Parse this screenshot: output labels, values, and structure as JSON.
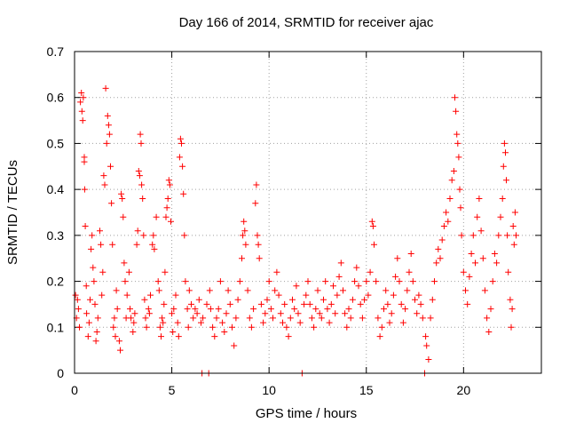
{
  "chart_data": {
    "type": "scatter",
    "title": "Day 166 of 2014, SRMTID for receiver ajac",
    "xlabel": "GPS time / hours",
    "ylabel": "SRMTID / TECUs",
    "xlim": [
      0,
      24
    ],
    "ylim": [
      0,
      0.7
    ],
    "xticks": [
      0,
      5,
      10,
      15,
      20
    ],
    "yticks": [
      0,
      0.1,
      0.2,
      0.3,
      0.4,
      0.5,
      0.6,
      0.7
    ],
    "xtick_labels": [
      "0",
      "5",
      "10",
      "15",
      "20"
    ],
    "ytick_labels": [
      "0",
      "0.1",
      "0.2",
      "0.3",
      "0.4",
      "0.5",
      "0.6",
      "0.7"
    ],
    "grid": true,
    "legend": "none",
    "marker": "+",
    "color": "#ff0000",
    "series": [
      {
        "name": "SRMTID",
        "points": [
          [
            0.05,
            0.17
          ],
          [
            0.1,
            0.12
          ],
          [
            0.15,
            0.16
          ],
          [
            0.2,
            0.14
          ],
          [
            0.25,
            0.1
          ],
          [
            0.3,
            0.59
          ],
          [
            0.35,
            0.61
          ],
          [
            0.38,
            0.57
          ],
          [
            0.42,
            0.55
          ],
          [
            0.45,
            0.6
          ],
          [
            0.5,
            0.47
          ],
          [
            0.5,
            0.46
          ],
          [
            0.52,
            0.4
          ],
          [
            0.55,
            0.32
          ],
          [
            0.6,
            0.19
          ],
          [
            0.62,
            0.13
          ],
          [
            0.7,
            0.08
          ],
          [
            0.75,
            0.11
          ],
          [
            0.8,
            0.16
          ],
          [
            0.85,
            0.27
          ],
          [
            0.9,
            0.3
          ],
          [
            0.95,
            0.23
          ],
          [
            1.0,
            0.2
          ],
          [
            1.05,
            0.15
          ],
          [
            1.1,
            0.07
          ],
          [
            1.15,
            0.09
          ],
          [
            1.2,
            0.12
          ],
          [
            1.3,
            0.31
          ],
          [
            1.35,
            0.28
          ],
          [
            1.4,
            0.17
          ],
          [
            1.45,
            0.22
          ],
          [
            1.5,
            0.43
          ],
          [
            1.55,
            0.41
          ],
          [
            1.6,
            0.62
          ],
          [
            1.65,
            0.5
          ],
          [
            1.7,
            0.56
          ],
          [
            1.75,
            0.54
          ],
          [
            1.8,
            0.52
          ],
          [
            1.85,
            0.45
          ],
          [
            1.9,
            0.37
          ],
          [
            1.95,
            0.28
          ],
          [
            2.0,
            0.1
          ],
          [
            2.05,
            0.12
          ],
          [
            2.1,
            0.08
          ],
          [
            2.15,
            0.18
          ],
          [
            2.2,
            0.14
          ],
          [
            2.3,
            0.07
          ],
          [
            2.35,
            0.05
          ],
          [
            2.4,
            0.39
          ],
          [
            2.45,
            0.38
          ],
          [
            2.5,
            0.34
          ],
          [
            2.55,
            0.24
          ],
          [
            2.6,
            0.2
          ],
          [
            2.65,
            0.12
          ],
          [
            2.7,
            0.17
          ],
          [
            2.8,
            0.22
          ],
          [
            2.85,
            0.14
          ],
          [
            2.9,
            0.12
          ],
          [
            3.0,
            0.09
          ],
          [
            3.05,
            0.11
          ],
          [
            3.1,
            0.13
          ],
          [
            3.2,
            0.28
          ],
          [
            3.25,
            0.31
          ],
          [
            3.3,
            0.44
          ],
          [
            3.35,
            0.43
          ],
          [
            3.38,
            0.52
          ],
          [
            3.42,
            0.5
          ],
          [
            3.45,
            0.41
          ],
          [
            3.5,
            0.38
          ],
          [
            3.55,
            0.3
          ],
          [
            3.6,
            0.16
          ],
          [
            3.65,
            0.12
          ],
          [
            3.7,
            0.1
          ],
          [
            3.8,
            0.14
          ],
          [
            3.85,
            0.13
          ],
          [
            3.9,
            0.17
          ],
          [
            4.0,
            0.28
          ],
          [
            4.05,
            0.3
          ],
          [
            4.1,
            0.27
          ],
          [
            4.2,
            0.34
          ],
          [
            4.3,
            0.2
          ],
          [
            4.35,
            0.18
          ],
          [
            4.4,
            0.1
          ],
          [
            4.45,
            0.08
          ],
          [
            4.5,
            0.12
          ],
          [
            4.55,
            0.11
          ],
          [
            4.6,
            0.15
          ],
          [
            4.65,
            0.22
          ],
          [
            4.7,
            0.34
          ],
          [
            4.75,
            0.36
          ],
          [
            4.8,
            0.38
          ],
          [
            4.85,
            0.42
          ],
          [
            4.9,
            0.41
          ],
          [
            4.95,
            0.33
          ],
          [
            5.0,
            0.13
          ],
          [
            5.05,
            0.09
          ],
          [
            5.1,
            0.14
          ],
          [
            5.2,
            0.17
          ],
          [
            5.3,
            0.11
          ],
          [
            5.35,
            0.08
          ],
          [
            5.4,
            0.47
          ],
          [
            5.45,
            0.51
          ],
          [
            5.5,
            0.5
          ],
          [
            5.55,
            0.45
          ],
          [
            5.6,
            0.39
          ],
          [
            5.65,
            0.3
          ],
          [
            5.7,
            0.2
          ],
          [
            5.8,
            0.14
          ],
          [
            5.85,
            0.1
          ],
          [
            5.9,
            0.18
          ],
          [
            6.0,
            0.15
          ],
          [
            6.1,
            0.12
          ],
          [
            6.2,
            0.14
          ],
          [
            6.3,
            0.13
          ],
          [
            6.4,
            0.16
          ],
          [
            6.5,
            0.11
          ],
          [
            6.55,
            0.0
          ],
          [
            6.6,
            0.12
          ],
          [
            6.8,
            0.15
          ],
          [
            6.9,
            0.0
          ],
          [
            6.95,
            0.18
          ],
          [
            7.0,
            0.14
          ],
          [
            7.1,
            0.1
          ],
          [
            7.2,
            0.08
          ],
          [
            7.3,
            0.12
          ],
          [
            7.4,
            0.14
          ],
          [
            7.5,
            0.2
          ],
          [
            7.6,
            0.11
          ],
          [
            7.7,
            0.09
          ],
          [
            7.8,
            0.13
          ],
          [
            7.9,
            0.18
          ],
          [
            8.0,
            0.15
          ],
          [
            8.1,
            0.1
          ],
          [
            8.2,
            0.06
          ],
          [
            8.3,
            0.12
          ],
          [
            8.4,
            0.16
          ],
          [
            8.5,
            0.2
          ],
          [
            8.6,
            0.25
          ],
          [
            8.65,
            0.3
          ],
          [
            8.7,
            0.33
          ],
          [
            8.75,
            0.31
          ],
          [
            8.8,
            0.28
          ],
          [
            8.9,
            0.18
          ],
          [
            9.0,
            0.12
          ],
          [
            9.1,
            0.1
          ],
          [
            9.2,
            0.14
          ],
          [
            9.3,
            0.37
          ],
          [
            9.35,
            0.41
          ],
          [
            9.4,
            0.3
          ],
          [
            9.45,
            0.28
          ],
          [
            9.5,
            0.25
          ],
          [
            9.6,
            0.15
          ],
          [
            9.7,
            0.11
          ],
          [
            9.8,
            0.13
          ],
          [
            9.9,
            0.16
          ],
          [
            10.0,
            0.2
          ],
          [
            10.1,
            0.14
          ],
          [
            10.2,
            0.12
          ],
          [
            10.3,
            0.18
          ],
          [
            10.4,
            0.22
          ],
          [
            10.5,
            0.17
          ],
          [
            10.6,
            0.13
          ],
          [
            10.7,
            0.11
          ],
          [
            10.8,
            0.15
          ],
          [
            10.9,
            0.1
          ],
          [
            11.0,
            0.08
          ],
          [
            11.1,
            0.12
          ],
          [
            11.2,
            0.16
          ],
          [
            11.3,
            0.14
          ],
          [
            11.4,
            0.19
          ],
          [
            11.5,
            0.13
          ],
          [
            11.6,
            0.11
          ],
          [
            11.7,
            0.0
          ],
          [
            11.8,
            0.15
          ],
          [
            11.9,
            0.17
          ],
          [
            12.0,
            0.2
          ],
          [
            12.1,
            0.15
          ],
          [
            12.2,
            0.12
          ],
          [
            12.3,
            0.1
          ],
          [
            12.4,
            0.14
          ],
          [
            12.5,
            0.18
          ],
          [
            12.6,
            0.13
          ],
          [
            12.7,
            0.12
          ],
          [
            12.8,
            0.16
          ],
          [
            12.9,
            0.2
          ],
          [
            13.0,
            0.14
          ],
          [
            13.1,
            0.11
          ],
          [
            13.2,
            0.15
          ],
          [
            13.3,
            0.19
          ],
          [
            13.4,
            0.13
          ],
          [
            13.5,
            0.17
          ],
          [
            13.6,
            0.21
          ],
          [
            13.7,
            0.24
          ],
          [
            13.8,
            0.18
          ],
          [
            13.9,
            0.13
          ],
          [
            14.0,
            0.1
          ],
          [
            14.1,
            0.14
          ],
          [
            14.2,
            0.12
          ],
          [
            14.3,
            0.16
          ],
          [
            14.4,
            0.2
          ],
          [
            14.5,
            0.23
          ],
          [
            14.6,
            0.19
          ],
          [
            14.7,
            0.15
          ],
          [
            14.8,
            0.12
          ],
          [
            14.9,
            0.16
          ],
          [
            15.0,
            0.2
          ],
          [
            15.1,
            0.17
          ],
          [
            15.2,
            0.22
          ],
          [
            15.3,
            0.33
          ],
          [
            15.35,
            0.32
          ],
          [
            15.4,
            0.28
          ],
          [
            15.5,
            0.2
          ],
          [
            15.6,
            0.12
          ],
          [
            15.7,
            0.08
          ],
          [
            15.8,
            0.1
          ],
          [
            15.9,
            0.14
          ],
          [
            16.0,
            0.18
          ],
          [
            16.1,
            0.15
          ],
          [
            16.2,
            0.11
          ],
          [
            16.3,
            0.13
          ],
          [
            16.4,
            0.17
          ],
          [
            16.5,
            0.21
          ],
          [
            16.6,
            0.25
          ],
          [
            16.7,
            0.2
          ],
          [
            16.8,
            0.15
          ],
          [
            16.9,
            0.11
          ],
          [
            17.0,
            0.14
          ],
          [
            17.1,
            0.18
          ],
          [
            17.2,
            0.22
          ],
          [
            17.3,
            0.26
          ],
          [
            17.4,
            0.2
          ],
          [
            17.5,
            0.16
          ],
          [
            17.6,
            0.13
          ],
          [
            17.7,
            0.17
          ],
          [
            17.8,
            0.15
          ],
          [
            17.9,
            0.12
          ],
          [
            18.0,
            0.0
          ],
          [
            18.05,
            0.08
          ],
          [
            18.1,
            0.06
          ],
          [
            18.2,
            0.03
          ],
          [
            18.3,
            0.12
          ],
          [
            18.4,
            0.16
          ],
          [
            18.5,
            0.2
          ],
          [
            18.6,
            0.24
          ],
          [
            18.7,
            0.27
          ],
          [
            18.8,
            0.25
          ],
          [
            18.9,
            0.29
          ],
          [
            19.0,
            0.32
          ],
          [
            19.1,
            0.35
          ],
          [
            19.2,
            0.33
          ],
          [
            19.3,
            0.38
          ],
          [
            19.4,
            0.42
          ],
          [
            19.5,
            0.44
          ],
          [
            19.55,
            0.6
          ],
          [
            19.6,
            0.57
          ],
          [
            19.65,
            0.52
          ],
          [
            19.7,
            0.5
          ],
          [
            19.75,
            0.47
          ],
          [
            19.8,
            0.4
          ],
          [
            19.85,
            0.36
          ],
          [
            19.9,
            0.3
          ],
          [
            20.0,
            0.22
          ],
          [
            20.1,
            0.18
          ],
          [
            20.2,
            0.15
          ],
          [
            20.3,
            0.21
          ],
          [
            20.4,
            0.26
          ],
          [
            20.5,
            0.3
          ],
          [
            20.6,
            0.24
          ],
          [
            20.7,
            0.34
          ],
          [
            20.8,
            0.38
          ],
          [
            20.9,
            0.31
          ],
          [
            21.0,
            0.25
          ],
          [
            21.1,
            0.18
          ],
          [
            21.2,
            0.12
          ],
          [
            21.3,
            0.09
          ],
          [
            21.4,
            0.14
          ],
          [
            21.5,
            0.2
          ],
          [
            21.6,
            0.26
          ],
          [
            21.7,
            0.24
          ],
          [
            21.8,
            0.3
          ],
          [
            21.9,
            0.34
          ],
          [
            22.0,
            0.38
          ],
          [
            22.05,
            0.45
          ],
          [
            22.1,
            0.5
          ],
          [
            22.15,
            0.48
          ],
          [
            22.2,
            0.42
          ],
          [
            22.25,
            0.3
          ],
          [
            22.3,
            0.22
          ],
          [
            22.4,
            0.16
          ],
          [
            22.45,
            0.1
          ],
          [
            22.5,
            0.14
          ],
          [
            22.55,
            0.32
          ],
          [
            22.6,
            0.28
          ],
          [
            22.65,
            0.35
          ],
          [
            22.7,
            0.3
          ]
        ]
      }
    ]
  }
}
